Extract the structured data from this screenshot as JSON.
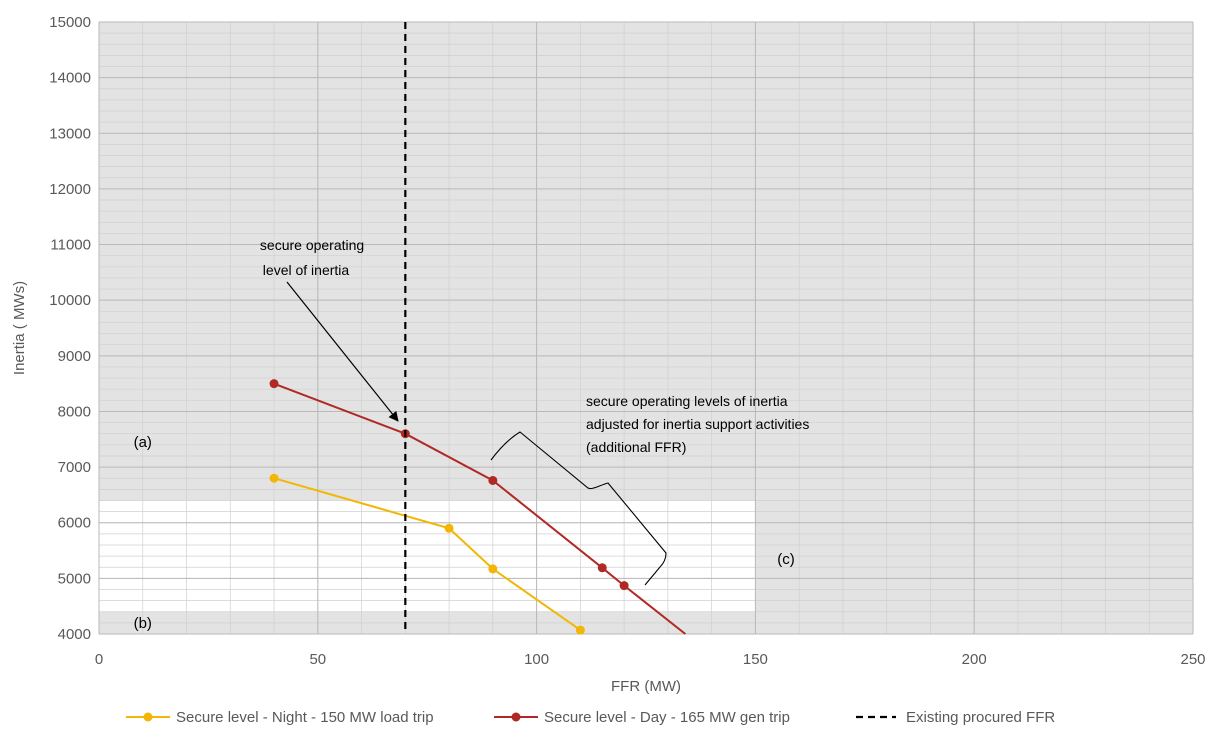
{
  "chart_data": {
    "type": "line",
    "xlabel": "FFR (MW)",
    "ylabel": "Inertia  ( MWs)",
    "xlim": [
      0,
      250
    ],
    "ylim": [
      4000,
      15000
    ],
    "x_ticks": [
      0,
      50,
      100,
      150,
      200,
      250
    ],
    "y_ticks": [
      4000,
      5000,
      6000,
      7000,
      8000,
      9000,
      10000,
      11000,
      12000,
      13000,
      14000,
      15000
    ],
    "grid": true,
    "legend_position": "bottom",
    "series": [
      {
        "name": "Secure level - Night - 150 MW load trip",
        "color": "#f2b705",
        "points": [
          [
            40,
            6800
          ],
          [
            80,
            5900
          ],
          [
            90,
            5170
          ],
          [
            110,
            4070
          ]
        ]
      },
      {
        "name": "Secure level - Day - 165 MW gen trip",
        "color": "#b02a25",
        "points": [
          [
            40,
            8500
          ],
          [
            70,
            7600
          ],
          [
            90,
            6760
          ],
          [
            115,
            5190
          ],
          [
            120,
            4870
          ],
          [
            134,
            4000
          ]
        ]
      },
      {
        "name": "Existing procured FFR",
        "color": "#000000",
        "style": "dashed",
        "x": 70
      }
    ],
    "regions": [
      {
        "label": "(a)",
        "x": 10,
        "y": 7450
      },
      {
        "label": "(b)",
        "x": 10,
        "y": 4200
      },
      {
        "label": "(c)",
        "x": 157,
        "y": 5350
      }
    ],
    "shaded_regions": {
      "background_color": "#e3e3e3",
      "white_region": {
        "x": [
          0,
          150
        ],
        "y": [
          4400,
          6400
        ]
      }
    },
    "annotations": [
      {
        "lines": [
          "secure operating",
          "level of inertia"
        ]
      },
      {
        "lines": [
          "secure operating levels of inertia",
          "adjusted for inertia support activities",
          "(additional FFR)"
        ]
      }
    ]
  }
}
